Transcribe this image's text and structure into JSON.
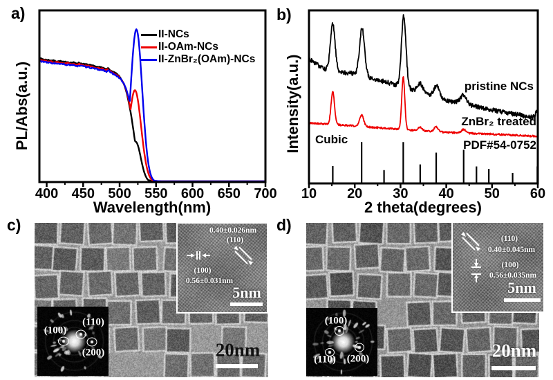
{
  "panels": {
    "a": "a)",
    "b": "b)",
    "c": "c)",
    "d": "d)"
  },
  "chart_data": [
    {
      "type": "line",
      "title": "",
      "xlabel": "Wavelength(nm)",
      "ylabel": "PL/Abs(a.u.)",
      "xlim": [
        390,
        700
      ],
      "ylim": [
        0,
        1
      ],
      "xticks": [
        400,
        450,
        500,
        550,
        600,
        650,
        700
      ],
      "minor_xticks": [
        425,
        475,
        525,
        575,
        625,
        675
      ],
      "grid": false,
      "legend_position": "top-inside",
      "series": [
        {
          "name": "II-NCs",
          "color": "#000000",
          "pl_peak": {
            "center": 522,
            "sigma": 7.0,
            "height": 0.235
          },
          "abs_offset": 0.0,
          "abs_xshift": 0
        },
        {
          "name": "II-OAm-NCs",
          "color": "#ee0000",
          "pl_peak": {
            "center": 521,
            "sigma": 8.5,
            "height": 0.535
          },
          "abs_offset": -0.008,
          "abs_xshift": 1
        },
        {
          "name": "II-ZnBr₂(OAm)-NCs",
          "color": "#0000ee",
          "pl_peak": {
            "center": 523,
            "sigma": 8.0,
            "height": 0.89
          },
          "abs_offset": -0.016,
          "abs_xshift": 2
        }
      ],
      "absorption_profile": [
        [
          390,
          0.72
        ],
        [
          398,
          0.713
        ],
        [
          406,
          0.709
        ],
        [
          414,
          0.704
        ],
        [
          420,
          0.703
        ],
        [
          424,
          0.698
        ],
        [
          428,
          0.701
        ],
        [
          432,
          0.695
        ],
        [
          436,
          0.697
        ],
        [
          440,
          0.692
        ],
        [
          444,
          0.694
        ],
        [
          448,
          0.69
        ],
        [
          452,
          0.686
        ],
        [
          456,
          0.684
        ],
        [
          460,
          0.68
        ],
        [
          464,
          0.676
        ],
        [
          468,
          0.672
        ],
        [
          472,
          0.669
        ],
        [
          476,
          0.667
        ],
        [
          480,
          0.66
        ],
        [
          483,
          0.664
        ],
        [
          486,
          0.655
        ],
        [
          489,
          0.645
        ],
        [
          492,
          0.638
        ],
        [
          495,
          0.633
        ],
        [
          498,
          0.622
        ],
        [
          501,
          0.608
        ],
        [
          504,
          0.588
        ],
        [
          507,
          0.558
        ],
        [
          510,
          0.515
        ],
        [
          513,
          0.455
        ],
        [
          516,
          0.385
        ],
        [
          519,
          0.3
        ],
        [
          522,
          0.21
        ],
        [
          525,
          0.13
        ],
        [
          528,
          0.072
        ],
        [
          531,
          0.04
        ],
        [
          535,
          0.02
        ],
        [
          540,
          0.01
        ],
        [
          548,
          0.006
        ],
        [
          560,
          0.004
        ],
        [
          600,
          0.004
        ],
        [
          650,
          0.004
        ],
        [
          700,
          0.004
        ]
      ]
    },
    {
      "type": "line",
      "title": "",
      "xlabel": "2 theta(degrees)",
      "ylabel": "Intensity(a.u.)",
      "xlim": [
        10,
        60
      ],
      "ylim": [
        0,
        1
      ],
      "xticks": [
        10,
        20,
        30,
        40,
        50,
        60
      ],
      "minor_xticks": [
        15,
        25,
        35,
        45,
        55
      ],
      "grid": false,
      "labels": {
        "pristine": "pristine NCs",
        "treated": "ZnBr₂ treated",
        "phase": "Cubic",
        "pdf": "PDF#54-0752"
      },
      "series": [
        {
          "name": "pristine NCs",
          "color": "#000000",
          "noise": 0.013,
          "baseline": [
            [
              10,
              0.72
            ],
            [
              13,
              0.665
            ],
            [
              16,
              0.645
            ],
            [
              20,
              0.635
            ],
            [
              24,
              0.605
            ],
            [
              28,
              0.578
            ],
            [
              32,
              0.545
            ],
            [
              36,
              0.515
            ],
            [
              40,
              0.48
            ],
            [
              44,
              0.462
            ],
            [
              48,
              0.435
            ],
            [
              52,
              0.415
            ],
            [
              56,
              0.395
            ],
            [
              60,
              0.375
            ]
          ],
          "peaks": [
            {
              "x": 15.2,
              "amp": 0.27,
              "w": 0.5
            },
            {
              "x": 21.6,
              "amp": 0.27,
              "w": 0.55
            },
            {
              "x": 30.7,
              "amp": 0.41,
              "w": 0.5
            },
            {
              "x": 34.3,
              "amp": 0.05,
              "w": 0.6
            },
            {
              "x": 37.9,
              "amp": 0.065,
              "w": 0.6
            },
            {
              "x": 43.8,
              "amp": 0.05,
              "w": 0.6
            },
            {
              "x": 60.0,
              "amp": 0.04,
              "w": 0.5
            }
          ]
        },
        {
          "name": "ZnBr₂ treated",
          "color": "#ee0000",
          "noise": 0.005,
          "baseline": [
            [
              10,
              0.35
            ],
            [
              20,
              0.332
            ],
            [
              30,
              0.312
            ],
            [
              40,
              0.295
            ],
            [
              50,
              0.285
            ],
            [
              60,
              0.272
            ]
          ],
          "peaks": [
            {
              "x": 15.2,
              "amp": 0.19,
              "w": 0.38
            },
            {
              "x": 21.5,
              "amp": 0.065,
              "w": 0.45
            },
            {
              "x": 30.6,
              "amp": 0.305,
              "w": 0.33
            },
            {
              "x": 34.3,
              "amp": 0.022,
              "w": 0.45
            },
            {
              "x": 37.8,
              "amp": 0.028,
              "w": 0.45
            },
            {
              "x": 43.8,
              "amp": 0.022,
              "w": 0.45
            }
          ]
        }
      ],
      "reference_pattern": {
        "phase": "Cubic",
        "name": "PDF#54-0752",
        "max_height_frac": 0.235,
        "sticks": [
          [
            15.2,
            0.41
          ],
          [
            21.5,
            1.0
          ],
          [
            26.4,
            0.31
          ],
          [
            30.6,
            1.0
          ],
          [
            34.3,
            0.45
          ],
          [
            37.8,
            0.74
          ],
          [
            43.8,
            0.81
          ],
          [
            46.6,
            0.4
          ],
          [
            49.3,
            0.34
          ],
          [
            54.5,
            0.24
          ],
          [
            59.9,
            0.4
          ]
        ]
      }
    }
  ],
  "panel_c": {
    "scale_bar": "20nm",
    "saed": {
      "left": "(100)",
      "top_right": "(110)",
      "bottom_right": "(200)"
    },
    "hrtem": {
      "d_spacing_top": "0.40±0.026nm",
      "plane_top": "(110)",
      "plane_left": "(100)",
      "d_spacing_bottom": "0.56±0.031nm",
      "scale_bar": "5nm"
    }
  },
  "panel_d": {
    "scale_bar": "20nm",
    "saed": {
      "top": "(100)",
      "bottom_left": "(110)",
      "bottom_right": "(200)"
    },
    "hrtem": {
      "plane_top": "(110)",
      "d_spacing_top": "0.40±0.045nm",
      "plane_mid": "(100)",
      "d_spacing_bottom": "0.56±0.035nm",
      "scale_bar": "5nm"
    }
  }
}
